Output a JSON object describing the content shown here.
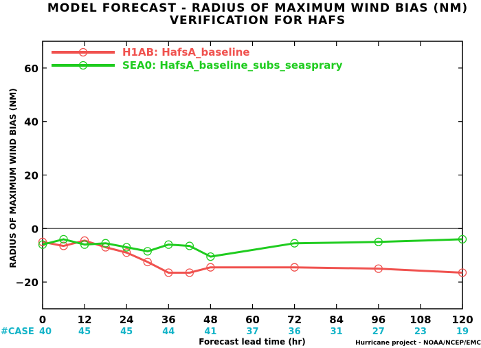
{
  "chart_data": {
    "type": "line",
    "title": "MODEL FORECAST - RADIUS OF MAXIMUM WIND BIAS (NM)",
    "subtitle": "VERIFICATION FOR HAFS",
    "xlabel": "Forecast lead time (hr)",
    "ylabel": "RADIUS OF MAXIMUM WIND BIAS (NM)",
    "xlim": [
      0,
      120
    ],
    "ylim": [
      -30,
      70
    ],
    "xticks": [
      0,
      12,
      24,
      36,
      48,
      60,
      72,
      84,
      96,
      108,
      120
    ],
    "yticks": [
      -20,
      0,
      20,
      40,
      60
    ],
    "zero_line": true,
    "legend_position": "top-left",
    "series": [
      {
        "name": "H1AB: HafsA_baseline",
        "color": "#f0524f",
        "x": [
          0,
          6,
          12,
          18,
          24,
          30,
          36,
          42,
          48,
          72,
          96,
          120
        ],
        "y": [
          -5,
          -6.5,
          -4.5,
          -7,
          -9,
          -12.5,
          -16.5,
          -16.5,
          -14.5,
          -14.5,
          -15,
          -16.5
        ]
      },
      {
        "name": "SEA0: HafsA_baseline_subs_seasprary",
        "color": "#1fcc1f",
        "x": [
          0,
          6,
          12,
          18,
          24,
          30,
          36,
          42,
          48,
          72,
          96,
          120
        ],
        "y": [
          -6,
          -4,
          -6,
          -5.5,
          -7,
          -8.5,
          -6,
          -6.5,
          -10.5,
          -5.5,
          -5,
          -4
        ]
      }
    ],
    "case_label": "#CASE",
    "case_counts": [
      {
        "x": 0,
        "label": "40"
      },
      {
        "x": 12,
        "label": "45"
      },
      {
        "x": 24,
        "label": "45"
      },
      {
        "x": 36,
        "label": "44"
      },
      {
        "x": 48,
        "label": "41"
      },
      {
        "x": 60,
        "label": "37"
      },
      {
        "x": 72,
        "label": "36"
      },
      {
        "x": 84,
        "label": "31"
      },
      {
        "x": 96,
        "label": "27"
      },
      {
        "x": 108,
        "label": "23"
      },
      {
        "x": 120,
        "label": "19"
      }
    ],
    "case_color": "#14b4c8",
    "credit": "Hurricane project - NOAA/NCEP/EMC"
  }
}
